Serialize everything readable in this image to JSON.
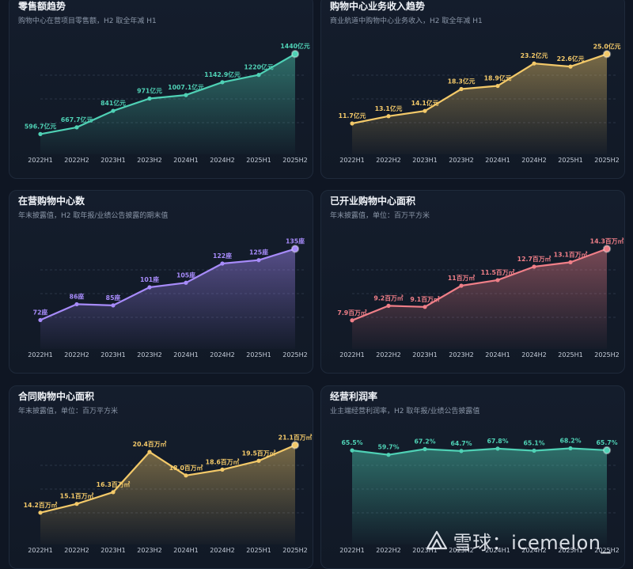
{
  "x_labels": [
    "2022H1",
    "2022H2",
    "2023H1",
    "2023H2",
    "2024H1",
    "2024H2",
    "2025H1",
    "2025H2"
  ],
  "watermark": {
    "text": "雪球：icemelon_",
    "icon": "snowball-logo-icon"
  },
  "chart_data": [
    {
      "id": "retail",
      "type": "area",
      "title": "零售额趋势",
      "subtitle": "购物中心在营项目零售额，H2 取全年减 H1",
      "color": "#4fd1b5",
      "categories": [
        "2022H1",
        "2022H2",
        "2023H1",
        "2023H2",
        "2024H1",
        "2024H2",
        "2025H1",
        "2025H2"
      ],
      "values": [
        596.7,
        667.7,
        841,
        971,
        1007.1,
        1142.9,
        1220,
        1440
      ],
      "labels": [
        "596.7亿元",
        "667.7亿元",
        "841亿元",
        "971亿元",
        "1007.1亿元",
        "1142.9亿元",
        "1220亿元",
        "1440亿元"
      ],
      "ylim": [
        450,
        1450
      ]
    },
    {
      "id": "revenue",
      "type": "area",
      "title": "购物中心业务收入趋势",
      "subtitle": "商业航道中购物中心业务收入，H2 取全年减 H1",
      "color": "#f3c969",
      "categories": [
        "2022H1",
        "2022H2",
        "2023H1",
        "2023H2",
        "2024H1",
        "2024H2",
        "2025H1",
        "2025H2"
      ],
      "values": [
        11.7,
        13.1,
        14.1,
        18.3,
        18.9,
        23.2,
        22.6,
        25.0
      ],
      "labels": [
        "11.7亿元",
        "13.1亿元",
        "14.1亿元",
        "18.3亿元",
        "18.9亿元",
        "23.2亿元",
        "22.6亿元",
        "25.0亿元"
      ],
      "ylim": [
        7,
        25.2
      ]
    },
    {
      "id": "malls",
      "type": "area",
      "title": "在营购物中心数",
      "subtitle": "年末披露值，H2 取年报/业绩公告披露的期末值",
      "color": "#a78bfa",
      "categories": [
        "2022H1",
        "2022H2",
        "2023H1",
        "2023H2",
        "2024H1",
        "2024H2",
        "2025H1",
        "2025H2"
      ],
      "values": [
        72,
        86,
        85,
        101,
        105,
        122,
        125,
        135
      ],
      "labels": [
        "72座",
        "86座",
        "85座",
        "101座",
        "105座",
        "122座",
        "125座",
        "135座"
      ],
      "ylim": [
        52,
        136
      ]
    },
    {
      "id": "opened-area",
      "type": "area",
      "title": "已开业购物中心面积",
      "subtitle": "年末披露值，单位：百万平方米",
      "color": "#f07f88",
      "categories": [
        "2022H1",
        "2022H2",
        "2023H1",
        "2023H2",
        "2024H1",
        "2024H2",
        "2025H1",
        "2025H2"
      ],
      "values": [
        7.9,
        9.2,
        9.1,
        11,
        11.5,
        12.7,
        13.1,
        14.3
      ],
      "labels": [
        "7.9百万㎡",
        "9.2百万㎡",
        "9.1百万㎡",
        "11百万㎡",
        "11.5百万㎡",
        "12.7百万㎡",
        "13.1百万㎡",
        "14.3百万㎡"
      ],
      "ylim": [
        5.9,
        14.4
      ]
    },
    {
      "id": "contracted-area",
      "type": "area",
      "title": "合同购物中心面积",
      "subtitle": "年末披露值，单位：百万平方米",
      "color": "#f3c969",
      "categories": [
        "2022H1",
        "2022H2",
        "2023H1",
        "2023H2",
        "2024H1",
        "2024H2",
        "2025H1",
        "2025H2"
      ],
      "values": [
        14.2,
        15.1,
        16.3,
        20.4,
        18.0,
        18.6,
        19.5,
        21.1
      ],
      "labels": [
        "14.2百万㎡",
        "15.1百万㎡",
        "16.3百万㎡",
        "20.4百万㎡",
        "18.0百万㎡",
        "18.6百万㎡",
        "19.5百万㎡",
        "21.1百万㎡"
      ],
      "ylim": [
        11.6,
        21.3
      ]
    },
    {
      "id": "margin",
      "type": "area",
      "title": "经营利润率",
      "subtitle": "业主端经营利润率，H2 取年报/业绩公告披露值",
      "color": "#4fd1b5",
      "categories": [
        "2022H1",
        "2022H2",
        "2023H1",
        "2023H2",
        "2024H1",
        "2024H2",
        "2025H1",
        "2025H2"
      ],
      "values": [
        65.5,
        59.7,
        67.2,
        64.7,
        67.8,
        65.1,
        68.2,
        65.7
      ],
      "labels": [
        "65.5%",
        "59.7%",
        "67.2%",
        "64.7%",
        "67.8%",
        "65.1%",
        "68.2%",
        "65.7%"
      ],
      "ylim": [
        -50,
        75
      ]
    }
  ]
}
